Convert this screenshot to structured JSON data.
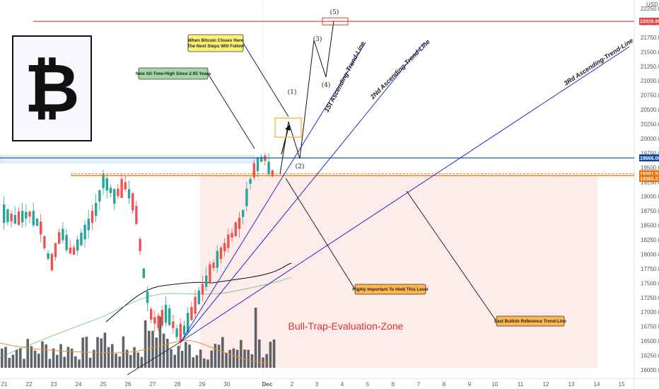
{
  "chart_data": {
    "type": "candlestick",
    "currency": "USD",
    "y_range": [
      15900,
      22500
    ],
    "x_tick_labels": [
      "21",
      "22",
      "23",
      "24",
      "25",
      "26",
      "27",
      "28",
      "29",
      "30",
      "Dec",
      "2",
      "3",
      "4",
      "5",
      "6",
      "7",
      "8",
      "9",
      "10",
      "11",
      "12",
      "13",
      "14",
      "15"
    ],
    "y_tick_labels": [
      "16000.00",
      "16250.00",
      "16500.00",
      "16750.00",
      "17000.00",
      "17250.00",
      "17500.00",
      "17750.00",
      "18000.00",
      "18250.00",
      "18500.00",
      "18750.00",
      "19000.00",
      "19250.00",
      "19500.00",
      "19750.00",
      "20000.00",
      "20250.00",
      "20500.00",
      "20750.00",
      "21000.00",
      "21250.00",
      "21500.00",
      "21750.00",
      "22000.00",
      "22250.00"
    ],
    "price_tags": [
      {
        "value": "22026.99",
        "color": "#e53935"
      },
      {
        "value": "19666.00",
        "color": "#0d47a1"
      },
      {
        "value": "19391.53",
        "color": "#ef6c00"
      },
      {
        "value": "19360.21",
        "color": "#ef6c00"
      }
    ],
    "trend_lines": [
      {
        "label": "1St Ascending-Trend-Line"
      },
      {
        "label": "2Nd Ascending-Trend-Line"
      },
      {
        "label": "3Rd Ascending-Trend-Line"
      }
    ],
    "wave_labels": [
      "(1)",
      "(2)",
      "(3)",
      "(4)",
      "(5)"
    ],
    "callouts": [
      {
        "lines": [
          "When Bitcoin Closes Here",
          "The Next Steps Will Follow"
        ],
        "color": "#fff176"
      },
      {
        "lines": [
          "New All-Time-High Since 2.95 Years"
        ],
        "color": "#a5d6a7"
      },
      {
        "lines": [
          "Highly Important To Hold This Level"
        ],
        "color": "#ffb74d"
      },
      {
        "lines": [
          "Last Bullish Reference Trend-Line"
        ],
        "color": "#ffb74d"
      }
    ],
    "zone_label": "Bull-Trap-Evaluation-Zone",
    "logo": "₿",
    "colors": {
      "up": "#26a69a",
      "down": "#ef5350",
      "trend": "#1f2fd0",
      "resistance": "#e53935",
      "support": "#ef6c00",
      "volume": "#444a52"
    }
  }
}
